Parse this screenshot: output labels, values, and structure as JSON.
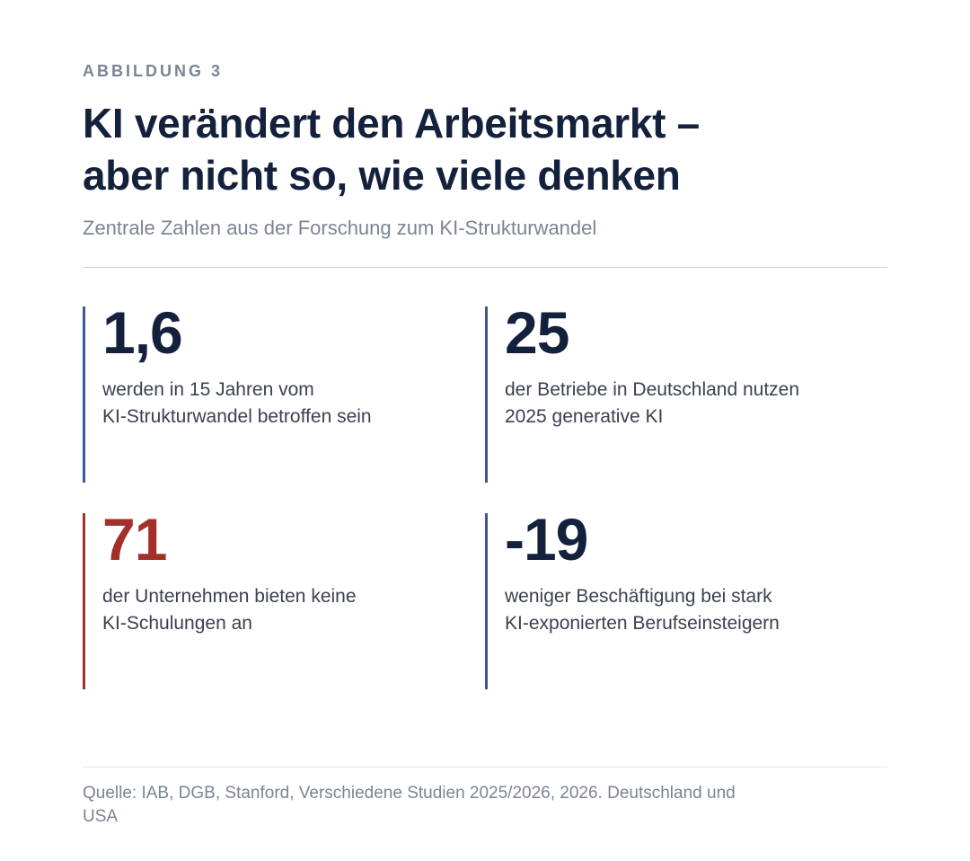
{
  "figure": {
    "eyebrow": "ABBILDUNG 3",
    "title_lines": [
      "KI verändert den Arbeitsmarkt –",
      "aber nicht so, wie viele denken"
    ],
    "subtitle": "Zentrale Zahlen aus der Forschung zum KI-Strukturwandel"
  },
  "stats": [
    {
      "value": "1,6",
      "desc_lines": [
        "werden in 15 Jahren vom",
        "KI-Strukturwandel betroffen sein"
      ],
      "accent_color": "#3a5a96"
    },
    {
      "value": "25",
      "desc_lines": [
        "der Betriebe in Deutschland nutzen",
        "2025 generative KI"
      ],
      "accent_color": "#3a5a96"
    },
    {
      "value": "71",
      "desc_lines": [
        "der Unternehmen bieten keine",
        "KI-Schulungen an"
      ],
      "accent_color": "#a3302a"
    },
    {
      "value": "-19",
      "desc_lines": [
        "weniger Beschäftigung bei stark",
        "KI-exponierten Berufseinsteigern"
      ],
      "accent_color": "#3a5a96"
    }
  ],
  "source_lines": [
    "Quelle: IAB, DGB, Stanford, Verschiedene Studien 2025/2026, 2026. Deutschland und",
    "USA"
  ],
  "colors": {
    "primary_text": "#14213d",
    "muted_text": "#7b8495",
    "body_text": "#3a4150",
    "blue_bar": "#3a5a96",
    "red_accent": "#a3302a"
  }
}
